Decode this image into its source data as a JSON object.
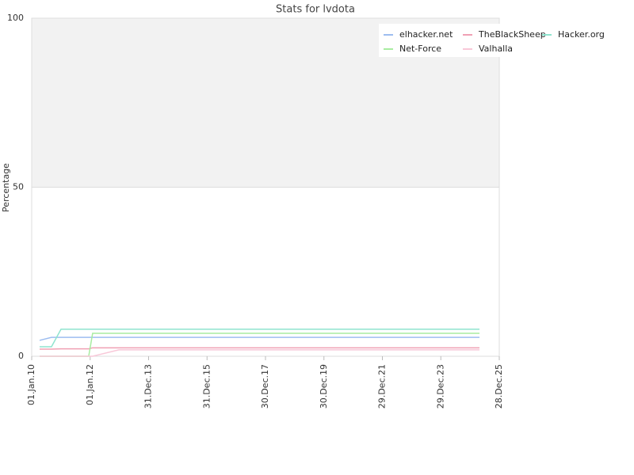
{
  "chart_data": {
    "type": "line",
    "title": "Stats for lvdota",
    "y_label": "Percentage",
    "x": [
      "2010-04-10",
      "2010-09-05",
      "2011-01-02",
      "2011-12-14",
      "2012-02-01",
      "2012-12-25",
      "2025-04-25"
    ],
    "series": [
      {
        "name": "elhacker.net",
        "color": "#9dbdf0",
        "values": [
          4.7,
          5.6,
          5.6,
          5.6,
          5.6,
          5.6,
          5.6
        ]
      },
      {
        "name": "TheBlackSheep",
        "color": "#f0a0b4",
        "values": [
          2.1,
          2.1,
          2.2,
          2.2,
          2.5,
          2.5,
          2.5
        ]
      },
      {
        "name": "Hacker.org",
        "color": "#8fe4cf",
        "values": [
          2.8,
          2.8,
          8,
          8,
          8,
          8,
          8
        ]
      },
      {
        "name": "Net-Force",
        "color": "#a8eca0",
        "values": [
          0,
          0,
          0,
          0,
          6.8,
          6.8,
          6.8
        ]
      },
      {
        "name": "Valhalla",
        "color": "#f8c8d8",
        "values": [
          0,
          0,
          0,
          0,
          0,
          1.9,
          1.9
        ]
      }
    ],
    "xlim": [
      "2010-01-01",
      "2025-12-28"
    ],
    "xticks": [
      {
        "value": "2010-01-01",
        "label": "01.Jan.10"
      },
      {
        "value": "2012-01-01",
        "label": "01.Jan.12"
      },
      {
        "value": "2013-12-31",
        "label": "31.Dec.13"
      },
      {
        "value": "2015-12-31",
        "label": "31.Dec.15"
      },
      {
        "value": "2017-12-30",
        "label": "30.Dec.17"
      },
      {
        "value": "2019-12-30",
        "label": "30.Dec.19"
      },
      {
        "value": "2021-12-29",
        "label": "29.Dec.21"
      },
      {
        "value": "2023-12-29",
        "label": "29.Dec.23"
      },
      {
        "value": "2025-12-28",
        "label": "28.Dec.25"
      }
    ],
    "ylim": [
      0,
      100
    ],
    "yticks": [
      0,
      50,
      100
    ],
    "grid": true
  }
}
